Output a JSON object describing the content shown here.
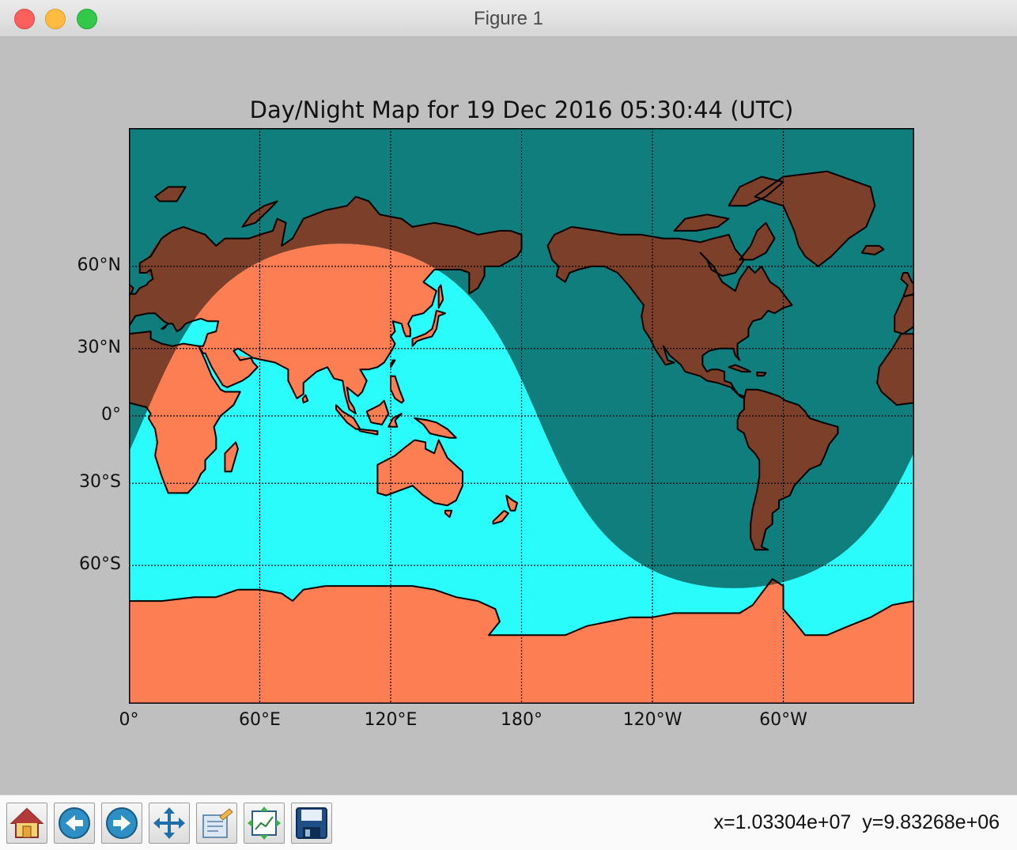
{
  "window": {
    "title": "Figure 1"
  },
  "chart_data": {
    "type": "map",
    "title": "Day/Night Map for 19 Dec 2016 05:30:44 (UTC)",
    "projection": "cylindrical (Miller-like), centered on 180°",
    "x_ticks": [
      "0°",
      "60°E",
      "120°E",
      "180°",
      "120°W",
      "60°W"
    ],
    "y_ticks": [
      "60°N",
      "30°N",
      "0°",
      "30°S",
      "60°S"
    ],
    "x_tick_longitudes": [
      0,
      60,
      120,
      180,
      240,
      300
    ],
    "y_tick_latitudes": [
      60,
      30,
      0,
      -30,
      -60
    ],
    "lon_range": [
      0,
      360
    ],
    "lat_range": [
      -90,
      90
    ],
    "grid": true,
    "colors": {
      "ocean_day": "#2afbfb",
      "ocean_night": "#117e7e",
      "land_day": "#fd7e53",
      "land_night": "#7c3f29",
      "coastline": "#000000"
    },
    "terminator": {
      "subsolar_longitude_east": 97.3,
      "subsolar_latitude": -23.4
    }
  },
  "toolbar": {
    "buttons": [
      {
        "name": "home-button",
        "icon": "home-icon"
      },
      {
        "name": "back-button",
        "icon": "arrow-left-icon"
      },
      {
        "name": "forward-button",
        "icon": "arrow-right-icon"
      },
      {
        "name": "pan-button",
        "icon": "move-arrows-icon"
      },
      {
        "name": "zoom-button",
        "icon": "zoom-rect-icon"
      },
      {
        "name": "configure-subplots-button",
        "icon": "subplots-icon"
      },
      {
        "name": "save-button",
        "icon": "floppy-disk-icon"
      }
    ],
    "coords_text": "x=1.03304e+07  y=9.83268e+06"
  }
}
